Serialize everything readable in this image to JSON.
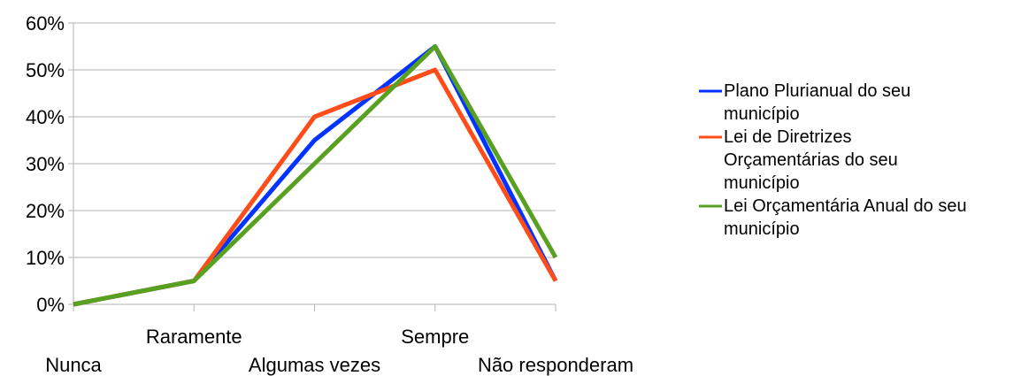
{
  "chart_data": {
    "type": "line",
    "categories": [
      "Nunca",
      "Raramente",
      "Algumas vezes",
      "Sempre",
      "Não responderam"
    ],
    "y_tick_labels": [
      "0%",
      "10%",
      "20%",
      "30%",
      "40%",
      "50%",
      "60%"
    ],
    "ylim": [
      0,
      60
    ],
    "y_unit": "%",
    "grid": true,
    "legend_position": "right",
    "series": [
      {
        "name": "Plano Plurianual do seu município",
        "name_lines": [
          "Plano Plurianual do seu",
          "município"
        ],
        "color": "#0033ff",
        "values": [
          0,
          5,
          35,
          55,
          5
        ]
      },
      {
        "name": "Lei de Diretrizes Orçamentárias do seu município",
        "name_lines": [
          "Lei de Diretrizes",
          "Orçamentárias do seu",
          "município"
        ],
        "color": "#ff4d1a",
        "values": [
          0,
          5,
          40,
          50,
          5
        ]
      },
      {
        "name": "Lei Orçamentária Anual do seu município",
        "name_lines": [
          "Lei Orçamentária Anual do seu",
          "município"
        ],
        "color": "#57a020",
        "values": [
          0,
          5,
          30,
          55,
          10
        ]
      }
    ]
  }
}
